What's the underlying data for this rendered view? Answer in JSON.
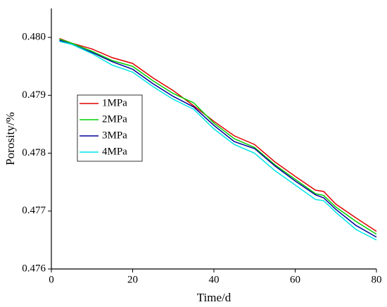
{
  "chart_data": {
    "type": "line",
    "xlabel": "Time/d",
    "ylabel": "Porosity/%",
    "x": [
      2,
      5,
      10,
      15,
      20,
      25,
      30,
      35,
      40,
      45,
      50,
      55,
      60,
      65,
      67,
      70,
      75,
      80
    ],
    "series": [
      {
        "name": "1MPa",
        "color": "#e00000",
        "values": [
          0.47998,
          0.4799,
          0.4798,
          0.47965,
          0.47955,
          0.4793,
          0.47908,
          0.47882,
          0.47855,
          0.4783,
          0.47815,
          0.47785,
          0.4776,
          0.47736,
          0.47734,
          0.47712,
          0.47688,
          0.47665
        ]
      },
      {
        "name": "2MPa",
        "color": "#00d000",
        "values": [
          0.47997,
          0.4799,
          0.47976,
          0.4796,
          0.4795,
          0.47925,
          0.47903,
          0.47887,
          0.47852,
          0.47825,
          0.4781,
          0.4778,
          0.47755,
          0.4773,
          0.47727,
          0.47707,
          0.47682,
          0.4766
        ]
      },
      {
        "name": "3MPa",
        "color": "#000099",
        "values": [
          0.47995,
          0.47988,
          0.47974,
          0.47958,
          0.47945,
          0.4792,
          0.47898,
          0.4788,
          0.47848,
          0.4782,
          0.47808,
          0.47778,
          0.47752,
          0.47728,
          0.47723,
          0.47703,
          0.47675,
          0.47655
        ]
      },
      {
        "name": "4MPa",
        "color": "#00e5e5",
        "values": [
          0.47993,
          0.47988,
          0.47972,
          0.47952,
          0.4794,
          0.47915,
          0.47893,
          0.47876,
          0.47842,
          0.47815,
          0.478,
          0.4777,
          0.47745,
          0.4772,
          0.47718,
          0.47698,
          0.47668,
          0.4765
        ]
      }
    ],
    "xlim": [
      0,
      80
    ],
    "xticks": [
      0,
      20,
      40,
      60,
      80
    ],
    "ylim": [
      0.476,
      0.4805
    ],
    "yticks": [
      0.476,
      0.477,
      0.478,
      0.479,
      {
        "value": 0.48,
        "label": "0.480"
      }
    ],
    "legend": "left"
  }
}
